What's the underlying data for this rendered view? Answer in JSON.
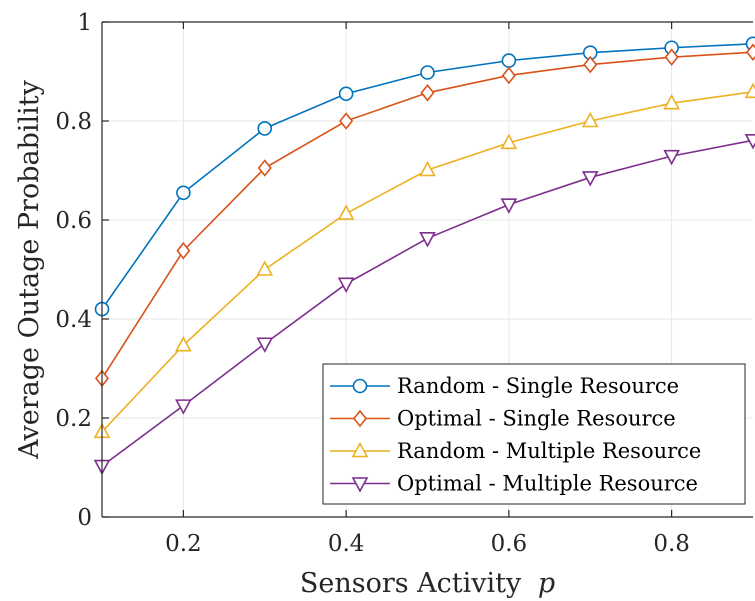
{
  "chart_data": {
    "type": "line",
    "title": "",
    "xlabel": "Sensors Activity",
    "xlabel_symbol": "p",
    "ylabel": "Average Outage Probability",
    "xlim": [
      0.1,
      0.9
    ],
    "ylim": [
      0,
      1
    ],
    "xticks": [
      0.2,
      0.4,
      0.6,
      0.8
    ],
    "xtick_labels": [
      "0.2",
      "0.4",
      "0.6",
      "0.8"
    ],
    "yticks": [
      0,
      0.2,
      0.4,
      0.6,
      0.8,
      1
    ],
    "ytick_labels": [
      "0",
      "0.2",
      "0.4",
      "0.6",
      "0.8",
      "1"
    ],
    "grid": true,
    "legend_position": "bottom-right",
    "x": [
      0.1,
      0.2,
      0.3,
      0.4,
      0.5,
      0.6,
      0.7,
      0.8,
      0.9
    ],
    "series": [
      {
        "name": "Random - Single Resource",
        "color": "#0072BD",
        "marker": "circle",
        "values": [
          0.42,
          0.655,
          0.785,
          0.855,
          0.898,
          0.922,
          0.938,
          0.948,
          0.956
        ]
      },
      {
        "name": "Optimal - Single Resource",
        "color": "#D95319",
        "marker": "diamond",
        "values": [
          0.28,
          0.538,
          0.705,
          0.8,
          0.857,
          0.892,
          0.914,
          0.929,
          0.939
        ]
      },
      {
        "name": "Random - Multiple Resource",
        "color": "#EDB120",
        "marker": "triangle-up",
        "values": [
          0.172,
          0.347,
          0.5,
          0.613,
          0.701,
          0.756,
          0.8,
          0.836,
          0.859
        ]
      },
      {
        "name": "Optimal - Multiple Resource",
        "color": "#7E2F8E",
        "marker": "triangle-down",
        "values": [
          0.103,
          0.225,
          0.35,
          0.471,
          0.563,
          0.631,
          0.686,
          0.729,
          0.761
        ]
      }
    ]
  }
}
